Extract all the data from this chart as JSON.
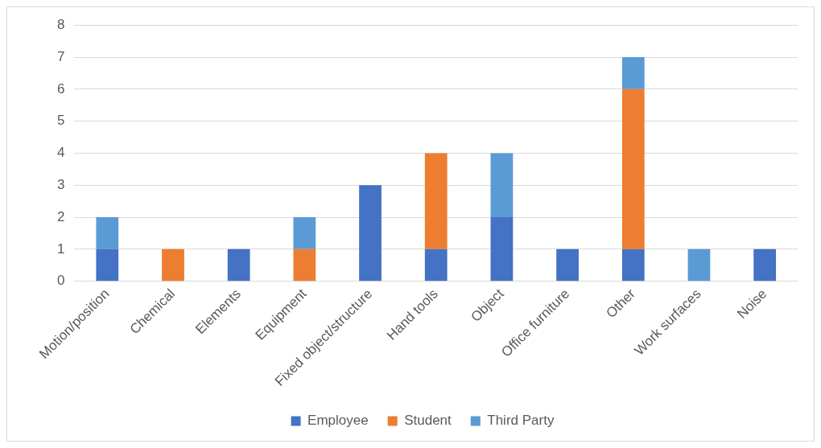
{
  "chart_data": {
    "type": "bar",
    "stacked": true,
    "categories": [
      "Motion/position",
      "Chemical",
      "Elements",
      "Equipment",
      "Fixed object/structure",
      "Hand tools",
      "Object",
      "Office furniture",
      "Other",
      "Work surfaces",
      "Noise"
    ],
    "series": [
      {
        "name": "Employee",
        "color": "#4472c4",
        "values": [
          1,
          0,
          1,
          0,
          3,
          1,
          2,
          1,
          1,
          0,
          1
        ]
      },
      {
        "name": "Student",
        "color": "#ed7d31",
        "values": [
          0,
          1,
          0,
          1,
          0,
          3,
          0,
          0,
          5,
          0,
          0
        ]
      },
      {
        "name": "Third Party",
        "color": "#5b9bd5",
        "values": [
          1,
          0,
          0,
          1,
          0,
          0,
          2,
          0,
          1,
          1,
          0
        ]
      }
    ],
    "ylim": [
      0,
      8
    ],
    "yticks": [
      0,
      1,
      2,
      3,
      4,
      5,
      6,
      7,
      8
    ],
    "grid": "y",
    "legend": "bottom"
  }
}
